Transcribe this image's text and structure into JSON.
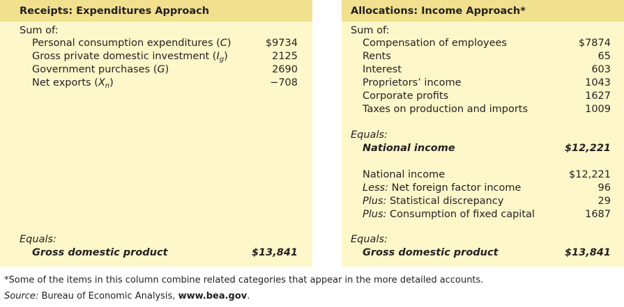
{
  "left": {
    "title": "Receipts: Expenditures Approach",
    "sum_of": "Sum of:",
    "rows": [
      {
        "pre": "Personal consumption expenditures (",
        "sym": "C",
        "sub": "",
        "post": ")",
        "value": "$9734"
      },
      {
        "pre": "Gross private domestic investment (",
        "sym": "I",
        "sub": "g",
        "post": ")",
        "value": "2125"
      },
      {
        "pre": "Government purchases (",
        "sym": "G",
        "sub": "",
        "post": ")",
        "value": "2690"
      },
      {
        "pre": "Net exports (",
        "sym": "X",
        "sub": "n",
        "post": ")",
        "value": "−708"
      }
    ],
    "equals": "Equals:",
    "total_label": "Gross domestic product",
    "total_value": "$13,841"
  },
  "right": {
    "title": "Allocations: Income Approach*",
    "sum_of": "Sum of:",
    "rows": [
      {
        "label": "Compensation of employees",
        "value": "$7874"
      },
      {
        "label": "Rents",
        "value": "65"
      },
      {
        "label": "Interest",
        "value": "603"
      },
      {
        "label": "Proprietors’ income",
        "value": "1043"
      },
      {
        "label": "Corporate profits",
        "value": "1627"
      },
      {
        "label": "Taxes on production and imports",
        "value": "1009"
      }
    ],
    "equals_1": "Equals:",
    "national_income_label": "National income",
    "national_income_value": "$12,221",
    "adjust_rows": [
      {
        "prefix": "",
        "label": "National income",
        "value": "$12,221"
      },
      {
        "prefix": "Less:",
        "label": " Net foreign factor income",
        "value": "96"
      },
      {
        "prefix": "Plus:",
        "label": " Statistical discrepancy",
        "value": "29"
      },
      {
        "prefix": "Plus:",
        "label": " Consumption of fixed capital",
        "value": "1687"
      }
    ],
    "equals_2": "Equals:",
    "total_label": "Gross domestic product",
    "total_value": "$13,841"
  },
  "footnote": "*Some of the items in this column combine related categories that appear in the more detailed accounts.",
  "source": {
    "label": "Source:",
    "text": " Bureau of Economic Analysis, ",
    "link": "www.bea.gov",
    "end": "."
  }
}
